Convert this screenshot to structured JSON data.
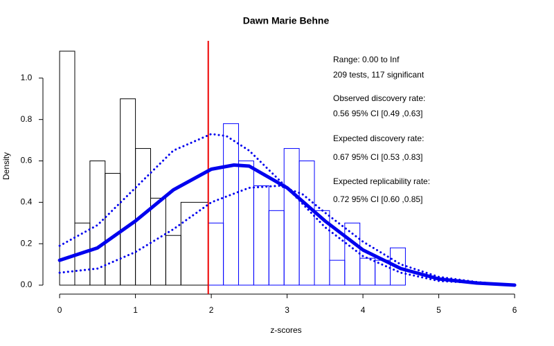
{
  "chart_data": {
    "type": "histogram",
    "title": "Dawn Marie Behne",
    "xlabel": "z-scores",
    "ylabel": "Density",
    "xlim": [
      -0.22,
      6.2
    ],
    "ylim": [
      -0.04,
      1.18
    ],
    "xticks": [
      0,
      1,
      2,
      3,
      4,
      5,
      6
    ],
    "yticks": [
      {
        "value": 0,
        "label": "0.0"
      },
      0.2,
      0.4,
      0.6,
      0.8,
      {
        "value": 1,
        "label": "1.0"
      }
    ],
    "series": [
      {
        "color": "#000000",
        "bins": [
          0,
          0.2,
          0.4,
          0.6,
          0.8,
          1.0,
          1.2,
          1.4,
          1.6,
          1.96
        ],
        "values": [
          1.13,
          0.3,
          0.6,
          0.54,
          0.9,
          0.66,
          0.42,
          0.24,
          0.4
        ]
      },
      {
        "color": "#0000ff",
        "bins": [
          1.96,
          2.16,
          2.36,
          2.56,
          2.76,
          2.96,
          3.16,
          3.36,
          3.56,
          3.76,
          3.96,
          4.16,
          4.36,
          4.56
        ],
        "values": [
          0.3,
          0.78,
          0.6,
          0.48,
          0.36,
          0.66,
          0.6,
          0.36,
          0.12,
          0.3,
          0.13,
          0.12,
          0.18
        ]
      }
    ],
    "lines": [
      {
        "color": "#0000ee",
        "width": 5,
        "dashed": false,
        "x": [
          0,
          0.5,
          1,
          1.5,
          2,
          2.3,
          2.5,
          3,
          3.5,
          4,
          4.5,
          5,
          5.5,
          6
        ],
        "values": [
          0.12,
          0.18,
          0.31,
          0.46,
          0.56,
          0.58,
          0.575,
          0.47,
          0.31,
          0.17,
          0.08,
          0.03,
          0.01,
          0
        ]
      },
      {
        "color": "#0000ee",
        "width": 3,
        "dashed": true,
        "x": [
          0,
          0.5,
          1,
          1.5,
          2,
          2.2,
          2.5,
          3,
          3.5,
          4,
          4.5,
          5,
          6
        ],
        "values": [
          0.19,
          0.29,
          0.47,
          0.65,
          0.73,
          0.72,
          0.65,
          0.47,
          0.28,
          0.14,
          0.06,
          0.02,
          0
        ]
      },
      {
        "color": "#0000ee",
        "width": 3,
        "dashed": true,
        "x": [
          0,
          0.5,
          1,
          1.5,
          2,
          2.5,
          2.9,
          3.2,
          3.5,
          4,
          4.5,
          5,
          5.5,
          6
        ],
        "values": [
          0.06,
          0.08,
          0.16,
          0.27,
          0.4,
          0.47,
          0.48,
          0.44,
          0.35,
          0.21,
          0.1,
          0.04,
          0.015,
          0
        ]
      }
    ],
    "vline": {
      "x": 1.96,
      "color": "#ee0000"
    },
    "annotations": [
      "Range: 0.00 to Inf",
      "209 tests, 117 significant",
      "Observed discovery rate:",
      "0.56  95% CI [0.49 ,0.63]",
      "Expected discovery rate:",
      "0.67  95% CI [0.53 ,0.83]",
      "Expected replicability rate:",
      "0.72  95% CI [0.60 ,0.85]"
    ]
  }
}
